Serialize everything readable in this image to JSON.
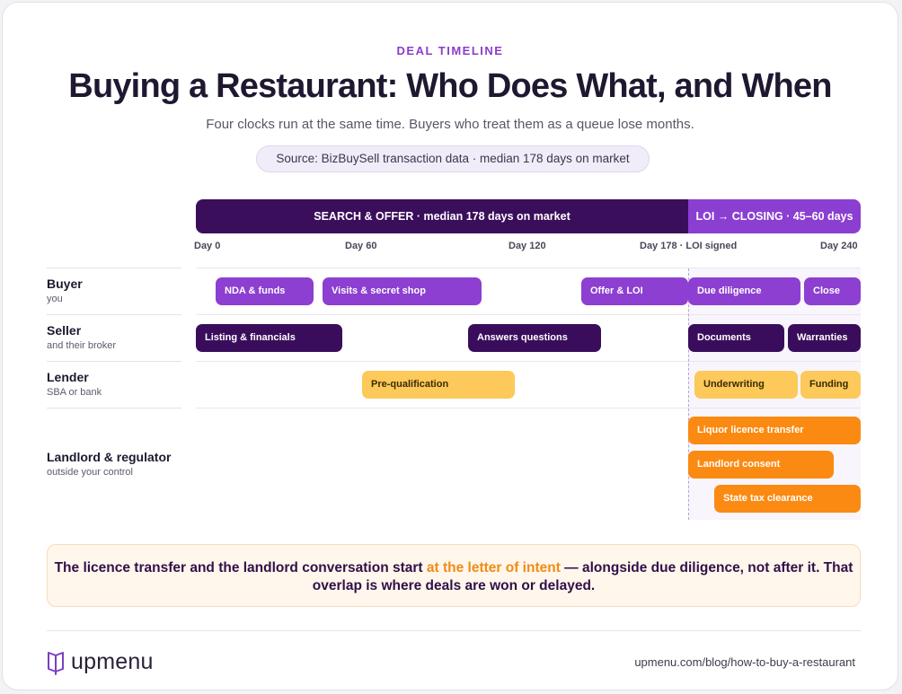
{
  "header": {
    "eyebrow": "DEAL TIMELINE",
    "title": "Buying a Restaurant: Who Does What, and When",
    "subtitle": "Four clocks run at the same time. Buyers who treat them as a queue lose months.",
    "source": "Source: BizBuySell transaction data · median 178 days on market"
  },
  "phases": {
    "search": "SEARCH & OFFER · median 178 days on market",
    "closing": "LOI → CLOSING · 45–60 days"
  },
  "ticks": [
    "Day 0",
    "Day 60",
    "Day 120",
    "Day 178 · LOI signed",
    "Day 240"
  ],
  "lanes": [
    {
      "name": "Buyer",
      "sub": "you"
    },
    {
      "name": "Seller",
      "sub": "and their broker"
    },
    {
      "name": "Lender",
      "sub": "SBA or bank"
    },
    {
      "name": "Landlord & regulator",
      "sub": "outside your control"
    }
  ],
  "tasks": {
    "buyer": [
      "NDA & funds",
      "Visits & secret shop",
      "Offer & LOI",
      "Due diligence",
      "Close"
    ],
    "seller": [
      "Listing & financials",
      "Answers questions",
      "Documents",
      "Warranties"
    ],
    "lender": [
      "Pre-qualification",
      "Underwriting",
      "Funding"
    ],
    "regulator": [
      "Liquor licence transfer",
      "Landlord consent",
      "State tax clearance"
    ]
  },
  "callout": {
    "before": "The licence transfer and the landlord conversation start ",
    "highlight": "at the letter of intent",
    "after": " — alongside due diligence, not after it. That overlap is where deals are won or delayed."
  },
  "footer": {
    "brand": "upmenu",
    "url": "upmenu.com/blog/how-to-buy-a-restaurant"
  },
  "colors": {
    "buyer": "#8c3fd0",
    "seller": "#3a0d5c",
    "lender": "#fcc95a",
    "regulator": "#fb8a12",
    "accent": "#8a3ec9",
    "highlight": "#f08c12"
  }
}
